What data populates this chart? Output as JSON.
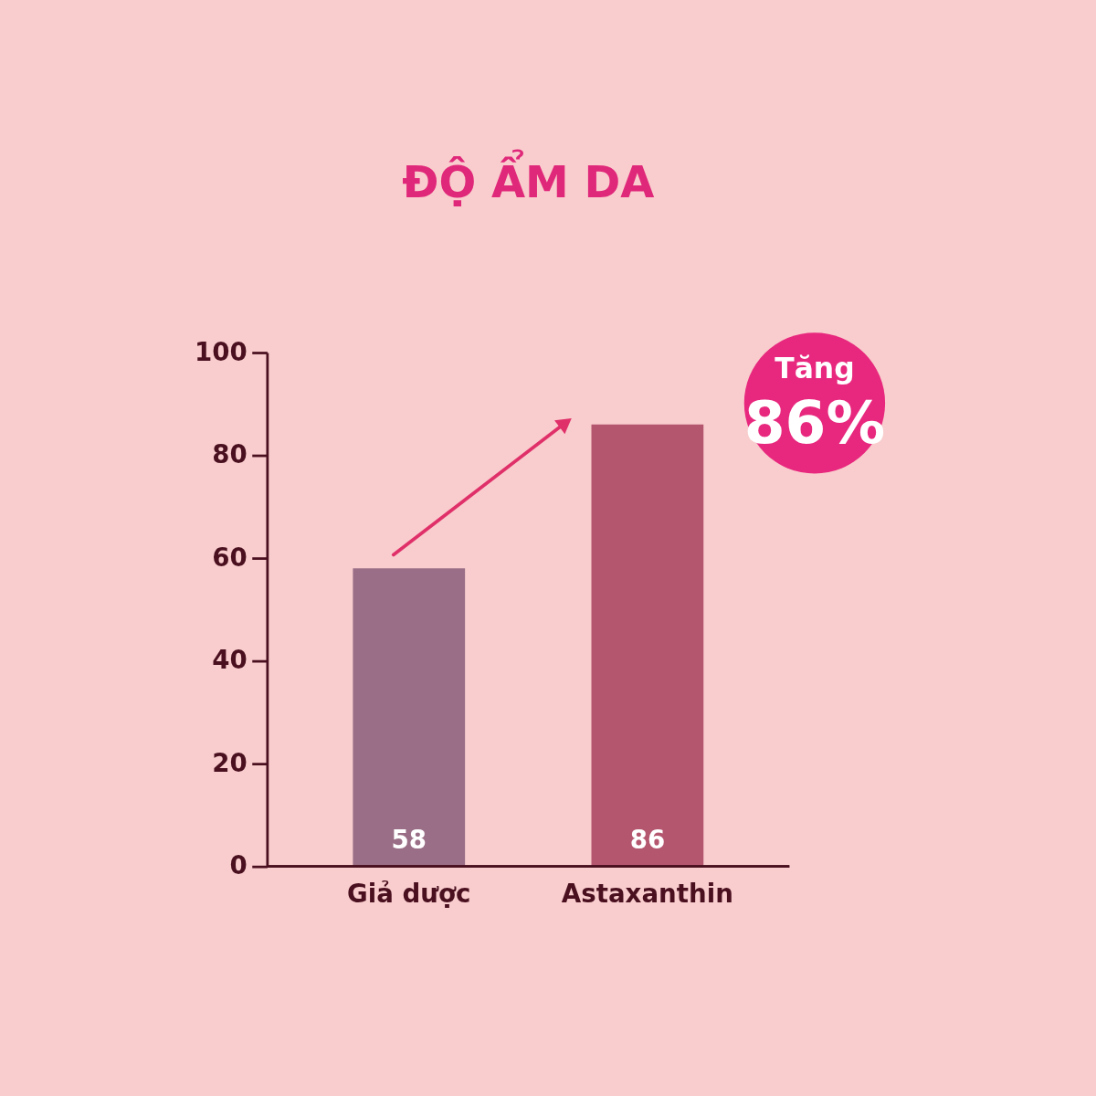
{
  "chart_data": {
    "type": "bar",
    "title": "ĐỘ ẨM DA",
    "categories": [
      "Giả dược",
      "Astaxanthin"
    ],
    "values": [
      58,
      86
    ],
    "colors": [
      "#9a6e86",
      "#b5566f"
    ],
    "ylim": [
      0,
      100
    ],
    "yticks": [
      0,
      20,
      40,
      60,
      80,
      100
    ],
    "grid": false,
    "data_labels": true,
    "annotations": [
      "Tăng",
      "86%"
    ]
  }
}
